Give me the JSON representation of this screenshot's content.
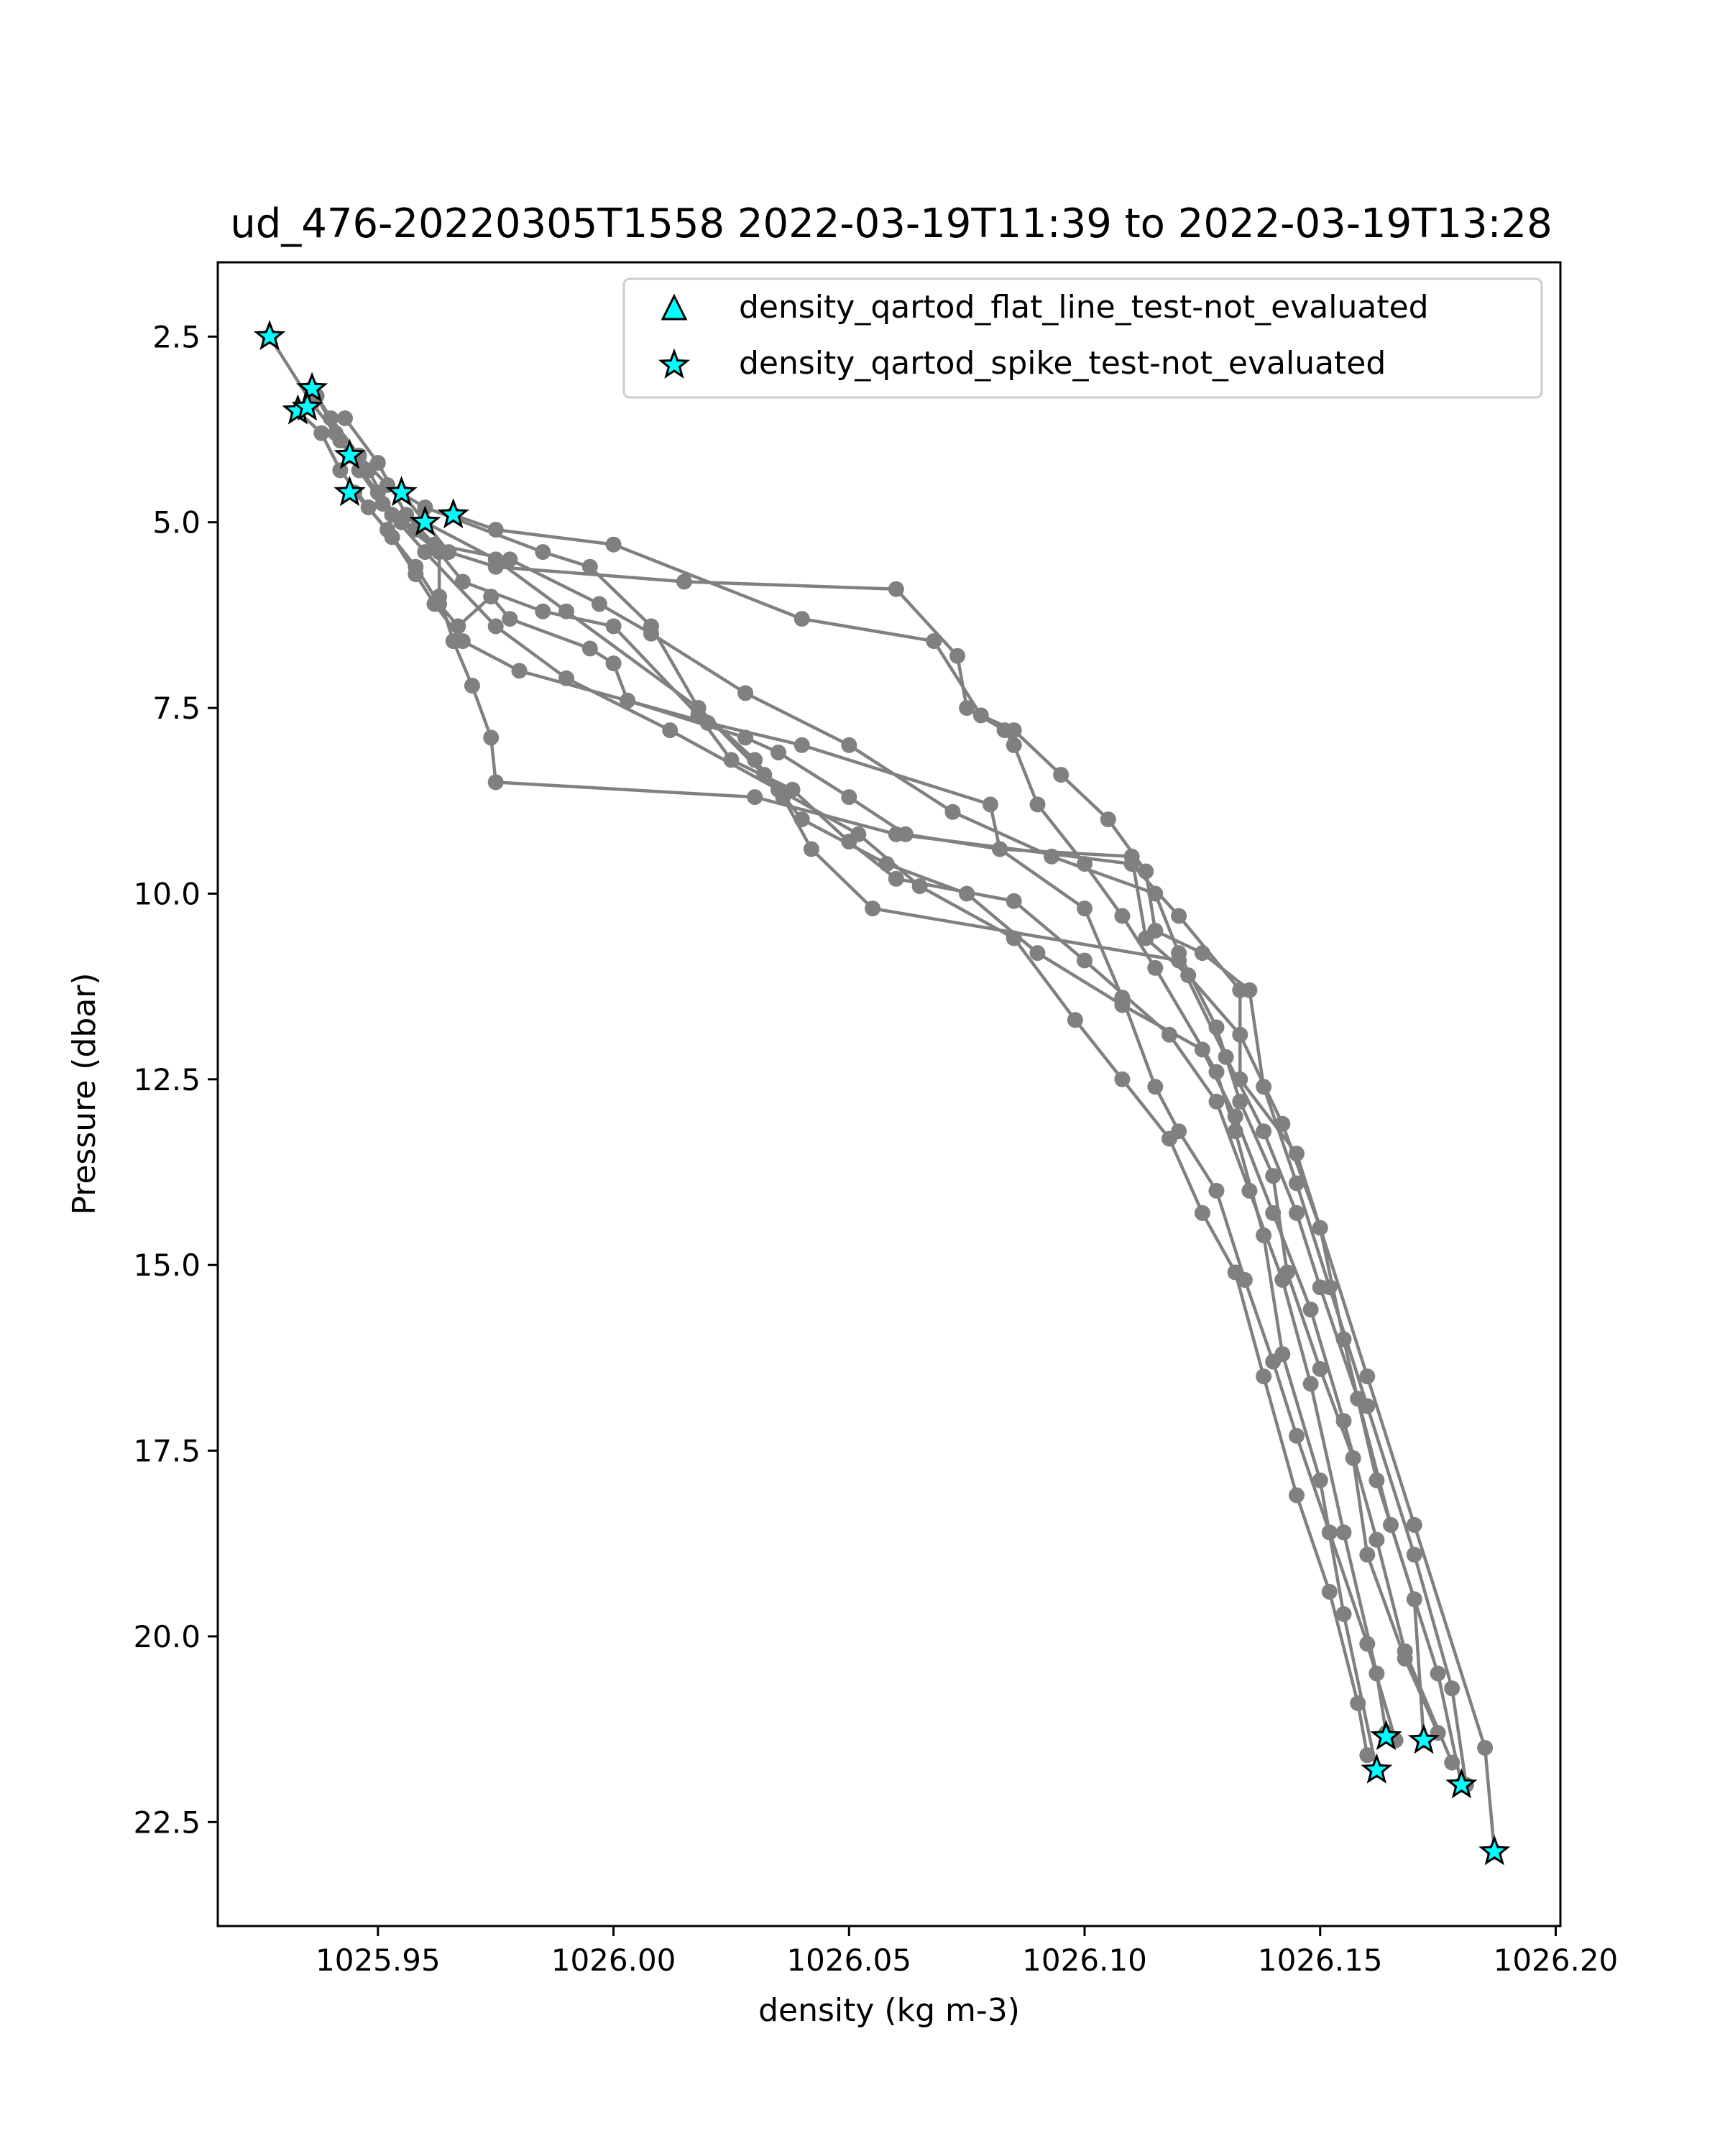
{
  "chart_data": {
    "type": "line",
    "title": "ud_476-20220305T1558 2022-03-19T11:39 to 2022-03-19T13:28",
    "xlabel": "density (kg m-3)",
    "ylabel": "Pressure (dbar)",
    "xlim": [
      1025.916,
      1026.201
    ],
    "ylim": [
      23.9,
      1.5
    ],
    "y_inverted": true,
    "xticks": [
      1025.95,
      1026.0,
      1026.05,
      1026.1,
      1026.15,
      1026.2
    ],
    "xtick_labels": [
      "1025.95",
      "1026.00",
      "1026.05",
      "1026.10",
      "1026.15",
      "1026.20"
    ],
    "yticks": [
      2.5,
      5.0,
      7.5,
      10.0,
      12.5,
      15.0,
      17.5,
      20.0,
      22.5
    ],
    "ytick_labels": [
      "2.5",
      "5.0",
      "7.5",
      "10.0",
      "12.5",
      "15.0",
      "17.5",
      "20.0",
      "22.5"
    ],
    "grid": false,
    "legend_placement": "top-right",
    "colors": {
      "profile_line": "#808080",
      "marker_fill": "#00ffff",
      "marker_edge": "#000000"
    },
    "legend": [
      {
        "label": "density_qartod_flat_line_test-not_evaluated",
        "marker": "triangle"
      },
      {
        "label": "density_qartod_spike_test-not_evaluated",
        "marker": "star"
      }
    ],
    "series": [
      {
        "points": [
          [
            1025.927,
            2.5
          ],
          [
            1025.936,
            3.4
          ],
          [
            1025.941,
            3.8
          ],
          [
            1025.946,
            4.3
          ],
          [
            1025.951,
            4.75
          ],
          [
            1025.958,
            5.1
          ],
          [
            1025.963,
            5.4
          ],
          [
            1025.963,
            6.0
          ],
          [
            1025.966,
            6.6
          ],
          [
            1025.97,
            7.2
          ],
          [
            1025.974,
            7.9
          ],
          [
            1025.975,
            8.5
          ],
          [
            1026.03,
            8.7
          ],
          [
            1026.06,
            9.2
          ],
          [
            1026.11,
            9.6
          ],
          [
            1026.12,
            10.3
          ],
          [
            1026.133,
            11.3
          ],
          [
            1026.133,
            12.5
          ],
          [
            1026.145,
            13.5
          ],
          [
            1026.16,
            16.5
          ],
          [
            1026.17,
            18.5
          ],
          [
            1026.185,
            21.5
          ],
          [
            1026.187,
            22.9
          ]
        ]
      },
      {
        "points": [
          [
            1025.936,
            3.2
          ],
          [
            1025.94,
            3.6
          ],
          [
            1025.946,
            4.1
          ],
          [
            1025.952,
            4.5
          ],
          [
            1025.96,
            4.8
          ],
          [
            1025.985,
            5.4
          ],
          [
            1025.995,
            5.6
          ],
          [
            1026.008,
            6.4
          ],
          [
            1026.018,
            7.5
          ],
          [
            1026.032,
            8.4
          ],
          [
            1026.036,
            8.7
          ],
          [
            1026.042,
            9.4
          ],
          [
            1026.055,
            10.2
          ],
          [
            1026.12,
            10.9
          ],
          [
            1026.13,
            12.2
          ],
          [
            1026.138,
            13.2
          ],
          [
            1026.145,
            14.3
          ],
          [
            1026.15,
            15.3
          ],
          [
            1026.158,
            16.8
          ],
          [
            1026.165,
            18.5
          ],
          [
            1026.175,
            20.5
          ],
          [
            1026.18,
            22.0
          ]
        ]
      },
      {
        "points": [
          [
            1025.933,
            3.5
          ],
          [
            1025.938,
            3.8
          ],
          [
            1025.942,
            4.3
          ],
          [
            1025.948,
            4.8
          ],
          [
            1025.953,
            5.2
          ],
          [
            1025.958,
            5.6
          ],
          [
            1025.963,
            6.1
          ],
          [
            1025.967,
            6.4
          ],
          [
            1025.974,
            6.0
          ],
          [
            1025.978,
            6.3
          ],
          [
            1025.995,
            6.7
          ],
          [
            1026.0,
            6.9
          ],
          [
            1026.003,
            7.4
          ],
          [
            1026.028,
            7.9
          ],
          [
            1026.035,
            8.1
          ],
          [
            1026.05,
            8.7
          ],
          [
            1026.062,
            9.2
          ],
          [
            1026.082,
            9.4
          ],
          [
            1026.11,
            9.5
          ],
          [
            1026.113,
            10.6
          ],
          [
            1026.122,
            11.1
          ],
          [
            1026.133,
            11.9
          ],
          [
            1026.142,
            13.1
          ],
          [
            1026.15,
            14.5
          ],
          [
            1026.155,
            16.0
          ],
          [
            1026.162,
            17.9
          ],
          [
            1026.17,
            19.5
          ],
          [
            1026.172,
            21.4
          ]
        ]
      },
      {
        "points": [
          [
            1025.944,
            4.1
          ],
          [
            1025.95,
            4.6
          ],
          [
            1025.955,
            5.0
          ],
          [
            1025.963,
            5.4
          ],
          [
            1025.968,
            5.8
          ],
          [
            1025.985,
            6.2
          ],
          [
            1026.0,
            6.4
          ],
          [
            1026.018,
            7.6
          ],
          [
            1026.025,
            8.2
          ],
          [
            1026.038,
            8.6
          ],
          [
            1026.05,
            9.3
          ],
          [
            1026.06,
            9.8
          ],
          [
            1026.085,
            10.1
          ],
          [
            1026.1,
            10.9
          ],
          [
            1026.118,
            11.9
          ],
          [
            1026.128,
            12.8
          ],
          [
            1026.135,
            14.0
          ],
          [
            1026.142,
            15.2
          ],
          [
            1026.148,
            16.6
          ],
          [
            1026.155,
            18.6
          ],
          [
            1026.162,
            20.5
          ],
          [
            1026.164,
            21.3
          ]
        ]
      },
      {
        "points": [
          [
            1025.955,
            4.6
          ],
          [
            1025.96,
            5.0
          ],
          [
            1025.965,
            5.4
          ],
          [
            1025.975,
            5.6
          ],
          [
            1026.015,
            5.8
          ],
          [
            1026.06,
            5.9
          ],
          [
            1026.073,
            6.8
          ],
          [
            1026.075,
            7.5
          ],
          [
            1026.083,
            7.8
          ],
          [
            1026.085,
            8.0
          ],
          [
            1026.09,
            8.8
          ],
          [
            1026.1,
            9.6
          ],
          [
            1026.108,
            10.3
          ],
          [
            1026.115,
            11.0
          ],
          [
            1026.128,
            12.4
          ],
          [
            1026.132,
            13.2
          ],
          [
            1026.138,
            14.6
          ],
          [
            1026.142,
            16.2
          ],
          [
            1026.15,
            17.9
          ],
          [
            1026.155,
            19.7
          ],
          [
            1026.162,
            21.8
          ]
        ]
      },
      {
        "points": [
          [
            1025.966,
            4.9
          ],
          [
            1025.975,
            5.1
          ],
          [
            1026.0,
            5.3
          ],
          [
            1026.04,
            6.3
          ],
          [
            1026.068,
            6.6
          ],
          [
            1026.078,
            7.6
          ],
          [
            1026.085,
            7.8
          ],
          [
            1026.095,
            8.4
          ],
          [
            1026.105,
            9.0
          ],
          [
            1026.113,
            9.7
          ],
          [
            1026.115,
            10.5
          ],
          [
            1026.125,
            10.8
          ],
          [
            1026.135,
            11.3
          ],
          [
            1026.138,
            12.6
          ],
          [
            1026.145,
            13.9
          ],
          [
            1026.152,
            15.3
          ],
          [
            1026.16,
            16.9
          ],
          [
            1026.17,
            18.9
          ],
          [
            1026.178,
            20.7
          ],
          [
            1026.181,
            22.0
          ]
        ]
      },
      {
        "points": [
          [
            1025.96,
            5.0
          ],
          [
            1025.975,
            5.5
          ],
          [
            1025.99,
            6.2
          ],
          [
            1026.018,
            7.5
          ],
          [
            1026.03,
            8.2
          ],
          [
            1026.04,
            9.0
          ],
          [
            1026.058,
            9.6
          ],
          [
            1026.075,
            10.0
          ],
          [
            1026.09,
            10.8
          ],
          [
            1026.108,
            11.5
          ],
          [
            1026.125,
            12.1
          ],
          [
            1026.132,
            13.0
          ],
          [
            1026.14,
            14.3
          ],
          [
            1026.148,
            15.6
          ],
          [
            1026.155,
            17.1
          ],
          [
            1026.162,
            18.7
          ],
          [
            1026.168,
            20.2
          ],
          [
            1026.178,
            21.7
          ]
        ]
      },
      {
        "points": [
          [
            1025.943,
            3.6
          ],
          [
            1025.95,
            4.2
          ],
          [
            1025.956,
            4.9
          ],
          [
            1025.962,
            5.3
          ],
          [
            1025.978,
            5.5
          ],
          [
            1025.997,
            6.1
          ],
          [
            1026.008,
            6.5
          ],
          [
            1026.028,
            7.3
          ],
          [
            1026.05,
            8.0
          ],
          [
            1026.072,
            8.9
          ],
          [
            1026.093,
            9.5
          ],
          [
            1026.115,
            10.0
          ],
          [
            1026.12,
            10.8
          ],
          [
            1026.128,
            11.8
          ],
          [
            1026.133,
            12.8
          ],
          [
            1026.14,
            13.8
          ],
          [
            1026.143,
            15.1
          ],
          [
            1026.15,
            16.4
          ],
          [
            1026.157,
            17.6
          ],
          [
            1026.16,
            18.9
          ],
          [
            1026.168,
            20.3
          ],
          [
            1026.175,
            21.3
          ]
        ]
      },
      {
        "points": [
          [
            1025.937,
            3.3
          ],
          [
            1025.942,
            3.9
          ],
          [
            1025.948,
            4.3
          ],
          [
            1025.953,
            4.9
          ],
          [
            1025.96,
            5.4
          ],
          [
            1025.975,
            6.4
          ],
          [
            1025.99,
            7.1
          ],
          [
            1026.012,
            7.8
          ],
          [
            1026.035,
            8.6
          ],
          [
            1026.052,
            9.2
          ],
          [
            1026.065,
            9.9
          ],
          [
            1026.085,
            10.6
          ],
          [
            1026.098,
            11.7
          ],
          [
            1026.108,
            12.5
          ],
          [
            1026.118,
            13.3
          ],
          [
            1026.125,
            14.3
          ],
          [
            1026.132,
            15.1
          ],
          [
            1026.138,
            16.5
          ],
          [
            1026.145,
            18.1
          ],
          [
            1026.152,
            19.4
          ],
          [
            1026.158,
            20.9
          ],
          [
            1026.16,
            21.6
          ]
        ]
      },
      {
        "points": [
          [
            1025.945,
            4.6
          ],
          [
            1025.952,
            5.1
          ],
          [
            1025.958,
            5.7
          ],
          [
            1025.962,
            6.1
          ],
          [
            1025.968,
            6.6
          ],
          [
            1025.98,
            7.0
          ],
          [
            1026.02,
            7.7
          ],
          [
            1026.04,
            8.0
          ],
          [
            1026.08,
            8.8
          ],
          [
            1026.082,
            9.4
          ],
          [
            1026.1,
            10.2
          ],
          [
            1026.108,
            11.4
          ],
          [
            1026.115,
            12.6
          ],
          [
            1026.12,
            13.2
          ],
          [
            1026.128,
            14.0
          ],
          [
            1026.134,
            15.2
          ],
          [
            1026.14,
            16.3
          ],
          [
            1026.145,
            17.3
          ],
          [
            1026.152,
            18.6
          ],
          [
            1026.16,
            20.1
          ],
          [
            1026.166,
            21.4
          ]
        ]
      }
    ],
    "star_markers": [
      [
        1025.927,
        2.5
      ],
      [
        1025.936,
        3.2
      ],
      [
        1025.933,
        3.5
      ],
      [
        1025.935,
        3.45
      ],
      [
        1025.944,
        4.1
      ],
      [
        1025.944,
        4.6
      ],
      [
        1025.955,
        4.6
      ],
      [
        1025.96,
        5.0
      ],
      [
        1025.966,
        4.9
      ],
      [
        1026.162,
        21.8
      ],
      [
        1026.164,
        21.35
      ],
      [
        1026.172,
        21.4
      ],
      [
        1026.18,
        22.0
      ],
      [
        1026.187,
        22.9
      ]
    ]
  }
}
